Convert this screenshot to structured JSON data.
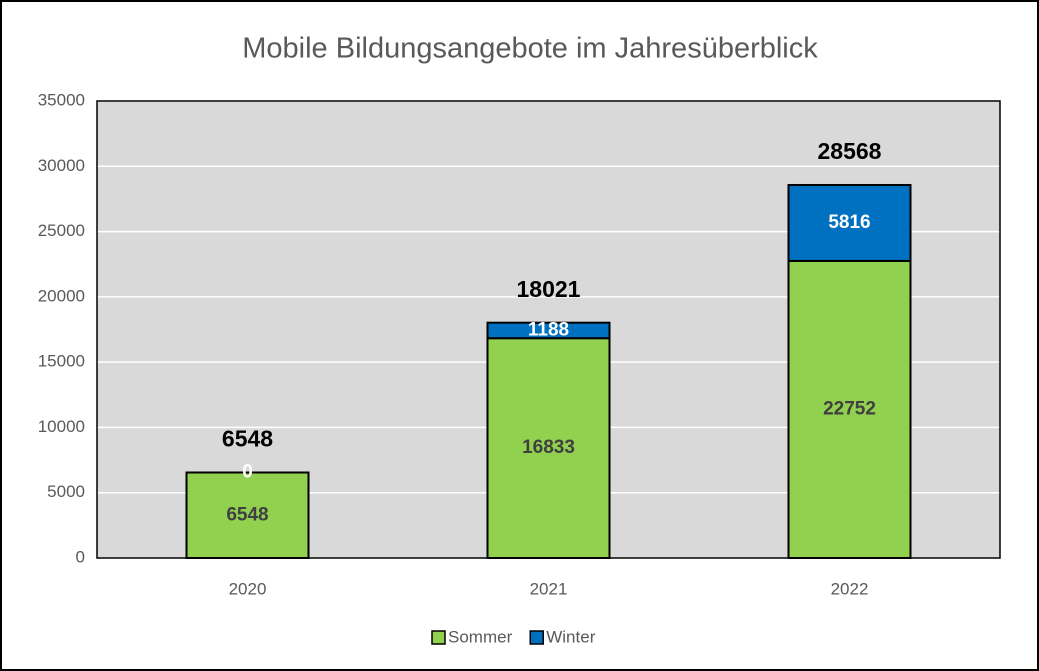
{
  "chart_data": {
    "type": "stacked_bar",
    "title": "Mobile Bildungsangebote im Jahresüberblick",
    "categories": [
      "2020",
      "2021",
      "2022"
    ],
    "series": [
      {
        "name": "Sommer",
        "color": "#92d050",
        "values": [
          6548,
          16833,
          22752
        ]
      },
      {
        "name": "Winter",
        "color": "#0070c0",
        "values": [
          0,
          1188,
          5816
        ]
      }
    ],
    "totals": [
      6548,
      18021,
      28568
    ],
    "ylim": [
      0,
      35000
    ],
    "yticks": [
      0,
      5000,
      10000,
      15000,
      20000,
      25000,
      30000,
      35000
    ],
    "grid": true,
    "legend": "bottom"
  }
}
